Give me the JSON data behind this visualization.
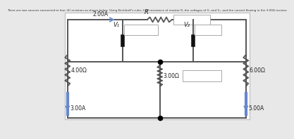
{
  "title_text": "There are two sources connected to four (4) resistors as shown below. Using Kirchhoff's rules, find resistance of resistor R, the voltages of V₁ and V₂, and the current flowing in the 3.00Ω resistor.",
  "bg_color": "#e8e8e8",
  "circuit_bg": "#ffffff",
  "wire_color": "#555555",
  "resistor_color": "#555555",
  "source_color_left": "#6688cc",
  "source_color_right": "#6688cc",
  "arrow_color": "#6688cc",
  "label_2A": "2.00A",
  "label_R": "R",
  "label_V1": "V₁",
  "label_V2": "V₂",
  "label_4ohm": "4.00Ω",
  "label_3A": "3.00A",
  "label_3ohm": "3.00Ω",
  "label_6ohm": "6.00Ω",
  "label_5A": "5.00A",
  "node_dot_color": "#000000",
  "box_edge_color": "#aaaaaa",
  "wire_lw": 1.4,
  "res_lw": 1.3
}
